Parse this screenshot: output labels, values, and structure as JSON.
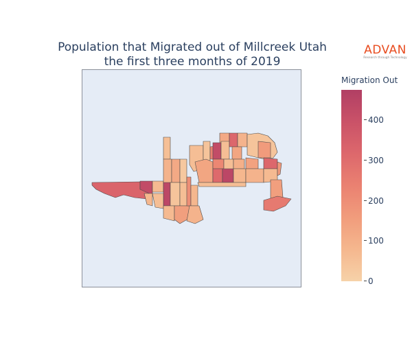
{
  "title": {
    "line1": "Population that Migrated out of Millcreek Utah",
    "line2": "the first three months of 2019"
  },
  "brand": {
    "name": "ADVAN",
    "tagline": "Research through Technology"
  },
  "colorbar": {
    "title": "Migration Out",
    "min": 0,
    "max": 475,
    "ticks": [
      "0",
      "100",
      "200",
      "300",
      "400"
    ],
    "tick_values": [
      0,
      100,
      200,
      300,
      400
    ],
    "colorscale": [
      "#f6d2a9",
      "#f5b78e",
      "#f19c7c",
      "#ea8171",
      "#dd686c",
      "#ca5268",
      "#b13f64"
    ]
  },
  "chart_data": {
    "type": "choropleth",
    "title": "Population that Migrated out of Millcreek Utah the first three months of 2019",
    "colorbar_title": "Migration Out",
    "range": [
      0,
      475
    ],
    "colorscale": "agsunset-like (peach to rose)",
    "background": "#e5ecf6",
    "region_values_estimated": [
      55,
      330,
      420,
      70,
      440,
      80,
      60,
      90,
      120,
      30,
      40,
      60,
      70,
      150,
      200,
      80,
      90,
      60,
      40,
      130,
      240,
      120,
      420,
      60,
      320,
      90,
      130,
      220,
      60,
      100,
      310,
      440,
      80,
      140,
      40,
      160,
      320,
      90,
      70,
      60,
      150,
      260,
      170,
      90,
      60,
      50,
      30,
      40,
      80,
      180,
      130,
      70,
      210,
      40
    ]
  }
}
